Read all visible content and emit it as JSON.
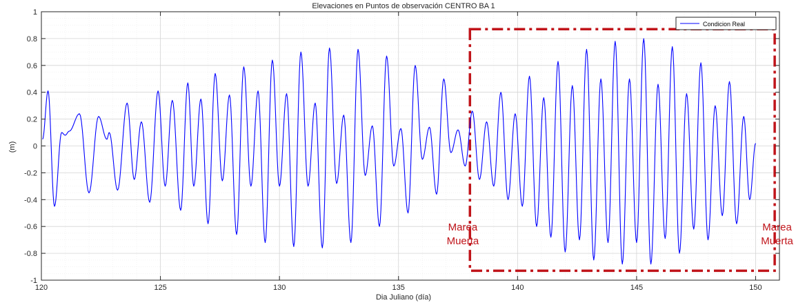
{
  "chart_data": {
    "type": "line",
    "title": "Elevaciones en Puntos de observación CENTRO BA 1",
    "xlabel": "Dia Juliano (día)",
    "ylabel": "(m)",
    "xlim": [
      120,
      151
    ],
    "ylim": [
      -1,
      1
    ],
    "x_ticks": [
      120,
      125,
      130,
      135,
      140,
      145,
      150
    ],
    "y_ticks": [
      1,
      0.8,
      0.6,
      0.4,
      0.2,
      0,
      -0.2,
      -0.4,
      -0.6,
      -0.8,
      -1
    ],
    "y_tick_labels": [
      "1",
      "0.8",
      "0.6",
      "0.4",
      "0.2",
      "0",
      "-0.2",
      "-0.4",
      "-0.6",
      "-0.8",
      "-1"
    ],
    "grid": true,
    "legend_position": "top-right",
    "series": [
      {
        "name": "Condicion Real",
        "color": "#0000ff",
        "peaks": [
          [
            120.05,
            0.05
          ],
          [
            120.28,
            0.41
          ],
          [
            120.55,
            -0.45
          ],
          [
            120.85,
            0.1
          ],
          [
            121.0,
            0.08
          ],
          [
            121.17,
            0.11
          ],
          [
            121.6,
            0.24
          ],
          [
            122.0,
            -0.35
          ],
          [
            122.4,
            0.22
          ],
          [
            122.75,
            0.05
          ],
          [
            122.85,
            0.1
          ],
          [
            123.2,
            -0.33
          ],
          [
            123.6,
            0.32
          ],
          [
            123.9,
            -0.25
          ],
          [
            124.2,
            0.18
          ],
          [
            124.55,
            -0.42
          ],
          [
            124.9,
            0.41
          ],
          [
            125.2,
            -0.3
          ],
          [
            125.5,
            0.34
          ],
          [
            125.85,
            -0.48
          ],
          [
            126.15,
            0.47
          ],
          [
            126.4,
            -0.3
          ],
          [
            126.7,
            0.35
          ],
          [
            127.0,
            -0.58
          ],
          [
            127.3,
            0.54
          ],
          [
            127.6,
            -0.26
          ],
          [
            127.9,
            0.38
          ],
          [
            128.2,
            -0.66
          ],
          [
            128.5,
            0.59
          ],
          [
            128.8,
            -0.3
          ],
          [
            129.1,
            0.41
          ],
          [
            129.4,
            -0.72
          ],
          [
            129.7,
            0.64
          ],
          [
            130.0,
            -0.3
          ],
          [
            130.3,
            0.39
          ],
          [
            130.6,
            -0.75
          ],
          [
            130.9,
            0.7
          ],
          [
            131.2,
            -0.3
          ],
          [
            131.5,
            0.32
          ],
          [
            131.8,
            -0.76
          ],
          [
            132.1,
            0.73
          ],
          [
            132.4,
            -0.28
          ],
          [
            132.7,
            0.23
          ],
          [
            133.0,
            -0.72
          ],
          [
            133.3,
            0.72
          ],
          [
            133.6,
            -0.22
          ],
          [
            133.9,
            0.15
          ],
          [
            134.2,
            -0.6
          ],
          [
            134.5,
            0.67
          ],
          [
            134.8,
            -0.15
          ],
          [
            135.1,
            0.13
          ],
          [
            135.4,
            -0.5
          ],
          [
            135.7,
            0.6
          ],
          [
            136.0,
            -0.1
          ],
          [
            136.3,
            0.14
          ],
          [
            136.6,
            -0.36
          ],
          [
            136.9,
            0.5
          ],
          [
            137.2,
            -0.05
          ],
          [
            137.5,
            0.12
          ],
          [
            137.8,
            -0.15
          ],
          [
            138.1,
            0.26
          ],
          [
            138.4,
            -0.25
          ],
          [
            138.7,
            0.18
          ],
          [
            139.0,
            -0.3
          ],
          [
            139.3,
            0.4
          ],
          [
            139.6,
            -0.4
          ],
          [
            139.9,
            0.24
          ],
          [
            140.2,
            -0.45
          ],
          [
            140.5,
            0.52
          ],
          [
            140.8,
            -0.6
          ],
          [
            141.1,
            0.36
          ],
          [
            141.4,
            -0.68
          ],
          [
            141.7,
            0.63
          ],
          [
            142.0,
            -0.79
          ],
          [
            142.3,
            0.45
          ],
          [
            142.6,
            -0.7
          ],
          [
            142.9,
            0.72
          ],
          [
            143.2,
            -0.85
          ],
          [
            143.5,
            0.5
          ],
          [
            143.8,
            -0.72
          ],
          [
            144.1,
            0.78
          ],
          [
            144.4,
            -0.88
          ],
          [
            144.7,
            0.5
          ],
          [
            145.0,
            -0.72
          ],
          [
            145.3,
            0.8
          ],
          [
            145.6,
            -0.88
          ],
          [
            145.9,
            0.46
          ],
          [
            146.2,
            -0.69
          ],
          [
            146.5,
            0.74
          ],
          [
            146.8,
            -0.8
          ],
          [
            147.1,
            0.39
          ],
          [
            147.4,
            -0.62
          ],
          [
            147.7,
            0.62
          ],
          [
            148.0,
            -0.7
          ],
          [
            148.3,
            0.3
          ],
          [
            148.6,
            -0.52
          ],
          [
            148.9,
            0.48
          ],
          [
            149.2,
            -0.58
          ],
          [
            149.5,
            0.22
          ],
          [
            149.75,
            -0.4
          ],
          [
            150.0,
            0.02
          ]
        ]
      }
    ],
    "annotations": [
      {
        "lines": [
          "Marea",
          "Muerta"
        ],
        "x": 137.7,
        "color": "#c0141a"
      },
      {
        "lines": [
          "Marea",
          "Muerta"
        ],
        "x": 150.9,
        "color": "#c0141a"
      }
    ],
    "highlight_box": {
      "x_range": [
        138.0,
        150.8
      ],
      "y_range": [
        -0.93,
        0.87
      ],
      "color": "#c0141a",
      "style": "dash-dot"
    }
  }
}
